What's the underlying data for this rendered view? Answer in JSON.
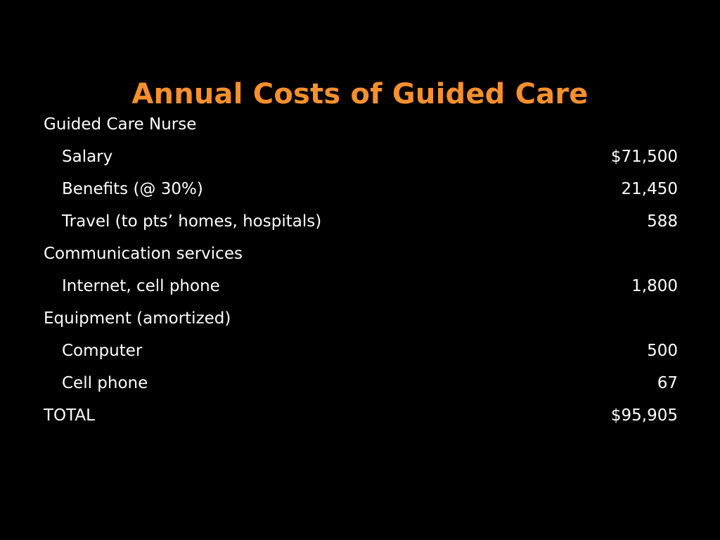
{
  "slide": {
    "title": "Annual Costs of Guided Care",
    "title_color": "#F7902D",
    "background_color": "#000000",
    "text_color": "#FFFFFF"
  },
  "rows": [
    {
      "label": "Guided Care Nurse",
      "value": "",
      "indent": false
    },
    {
      "label": "Salary",
      "value": "$71,500",
      "indent": true
    },
    {
      "label": "Benefits (@ 30%)",
      "value": "21,450",
      "indent": true
    },
    {
      "label": "Travel (to pts’ homes, hospitals)",
      "value": "588",
      "indent": true
    },
    {
      "label": "Communication services",
      "value": "",
      "indent": false
    },
    {
      "label": "Internet, cell phone",
      "value": "1,800",
      "indent": true
    },
    {
      "label": "Equipment (amortized)",
      "value": "",
      "indent": false
    },
    {
      "label": "Computer",
      "value": "500",
      "indent": true
    },
    {
      "label": "Cell phone",
      "value": "67",
      "indent": true
    },
    {
      "label": "TOTAL",
      "value": "$95,905",
      "indent": false
    }
  ]
}
